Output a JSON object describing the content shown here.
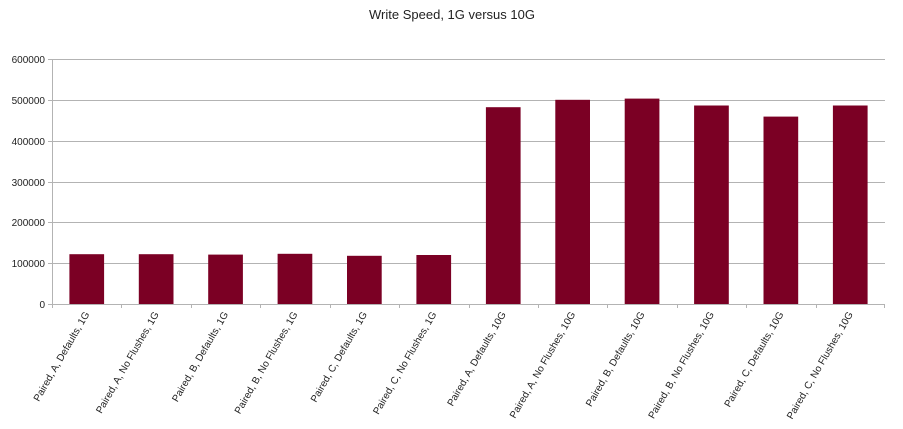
{
  "chart_data": {
    "type": "bar",
    "title": "Write Speed, 1G versus 10G",
    "xlabel": "",
    "ylabel": "",
    "categories": [
      "Paired, A, Defaults, 1G",
      "Paired, A, No Flushes, 1G",
      "Paired, B, Defaults, 1G",
      "Paired, B, No Flushes, 1G",
      "Paired, C, Defaults, 1G",
      "Paired, C, No Flushes, 1G",
      "Paired, A, Defaults, 10G",
      "Paired, A, No Flushes, 10G",
      "Paired, B, Defaults, 10G",
      "Paired, B, No Flushes, 10G",
      "Paired, C, Defaults, 10G",
      "Paired, C, No Flushes, 10G"
    ],
    "values": [
      122000,
      122000,
      121000,
      123000,
      118000,
      120000,
      482000,
      500000,
      503000,
      486000,
      459000,
      486000
    ],
    "ylim": [
      0,
      600000
    ],
    "yticks": [
      0,
      100000,
      200000,
      300000,
      400000,
      500000,
      600000
    ],
    "ytick_labels": [
      "0",
      "100000",
      "200000",
      "300000",
      "400000",
      "500000",
      "600000"
    ],
    "grid": true,
    "legend": "none",
    "bar_color": "#7b0024",
    "grid_color": "#b3b3b3",
    "axis_color": "#b3b3b3"
  }
}
